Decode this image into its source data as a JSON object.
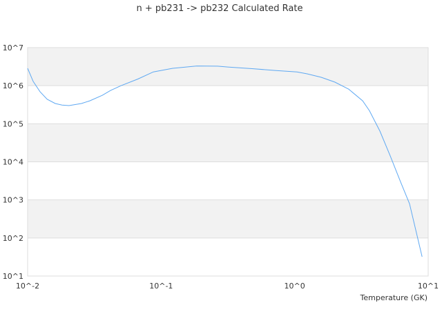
{
  "chart_data": {
    "type": "line",
    "title": "n + pb231 -> pb232 Calculated Rate",
    "xlabel": "Temperature (GK)",
    "ylabel": "",
    "xscale": "log",
    "yscale": "log",
    "xlim": [
      0.01,
      10
    ],
    "ylim": [
      10,
      10000000
    ],
    "xticks": [
      {
        "value": 0.01,
        "label": "10^-2"
      },
      {
        "value": 0.1,
        "label": "10^-1"
      },
      {
        "value": 1,
        "label": "10^0"
      },
      {
        "value": 10,
        "label": "10^1"
      }
    ],
    "yticks": [
      {
        "value": 10,
        "label": "10^1"
      },
      {
        "value": 100,
        "label": "10^2"
      },
      {
        "value": 1000,
        "label": "10^3"
      },
      {
        "value": 10000,
        "label": "10^4"
      },
      {
        "value": 100000,
        "label": "10^5"
      },
      {
        "value": 1000000,
        "label": "10^6"
      },
      {
        "value": 10000000,
        "label": "10^7"
      }
    ],
    "grid": "horizontal alternating bands",
    "colors": {
      "line": "#5ea8f2",
      "band": "#f2f2f2",
      "grid": "#dddddd"
    },
    "series": [
      {
        "x": [
          0.01,
          0.011,
          0.0124,
          0.014,
          0.0161,
          0.0181,
          0.0204,
          0.0253,
          0.0292,
          0.0363,
          0.0418,
          0.05,
          0.067,
          0.0874,
          0.122,
          0.185,
          0.265,
          0.316,
          0.48,
          0.728,
          1.04,
          1.24,
          1.58,
          2.0,
          2.54,
          3.23,
          3.63,
          4.35,
          5.2,
          6.2,
          7.25,
          9.0
        ],
        "y": [
          2860000,
          1300000,
          690000,
          440000,
          340000,
          310000,
          300000,
          340000,
          400000,
          560000,
          750000,
          1000000,
          1500000,
          2300000,
          2860000,
          3300000,
          3250000,
          3100000,
          2800000,
          2500000,
          2300000,
          2050000,
          1660000,
          1240000,
          810000,
          400000,
          220000,
          64000,
          14200,
          3000,
          790,
          32
        ]
      }
    ]
  }
}
